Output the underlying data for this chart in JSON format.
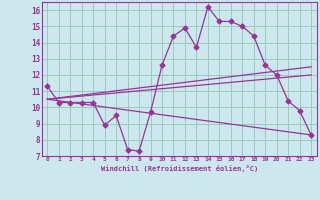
{
  "xlabel": "Windchill (Refroidissement éolien,°C)",
  "background_color": "#cce8ee",
  "grid_color": "#99ccbb",
  "line_color": "#993399",
  "xlim": [
    -0.5,
    23.5
  ],
  "ylim": [
    7,
    16.5
  ],
  "xticks": [
    0,
    1,
    2,
    3,
    4,
    5,
    6,
    7,
    8,
    9,
    10,
    11,
    12,
    13,
    14,
    15,
    16,
    17,
    18,
    19,
    20,
    21,
    22,
    23
  ],
  "yticks": [
    7,
    8,
    9,
    10,
    11,
    12,
    13,
    14,
    15,
    16
  ],
  "curve1_x": [
    0,
    1,
    2,
    3,
    4,
    5,
    6,
    7,
    8,
    9,
    10,
    11,
    12,
    13,
    14,
    15,
    16,
    17,
    18,
    19,
    20,
    21,
    22,
    23
  ],
  "curve1_y": [
    11.3,
    10.3,
    10.3,
    10.3,
    10.3,
    8.9,
    9.5,
    7.4,
    7.3,
    9.7,
    12.6,
    14.4,
    14.9,
    13.7,
    16.2,
    15.3,
    15.3,
    15.0,
    14.4,
    12.6,
    12.0,
    10.4,
    9.8,
    8.3
  ],
  "curve2_x": [
    0,
    23
  ],
  "curve2_y": [
    10.5,
    12.5
  ],
  "curve3_x": [
    0,
    23
  ],
  "curve3_y": [
    10.5,
    12.0
  ],
  "curve4_x": [
    0,
    23
  ],
  "curve4_y": [
    10.5,
    8.3
  ]
}
